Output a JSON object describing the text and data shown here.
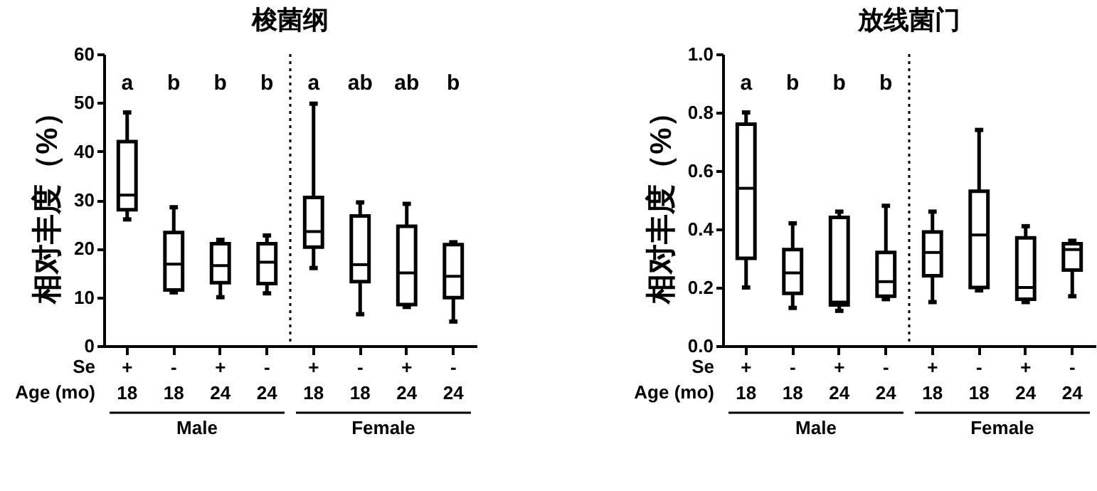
{
  "chart_data": [
    {
      "type": "box",
      "title": "梭菌纲",
      "ylabel": "相对丰度（%）",
      "categories": [
        "+ 18",
        "- 18",
        "+ 24",
        "- 24",
        "+ 18",
        "- 18",
        "+ 24",
        "- 24"
      ],
      "boxes": [
        {
          "low": 26,
          "q1": 28,
          "median": 31,
          "q3": 42,
          "high": 48
        },
        {
          "low": 11,
          "q1": 11.5,
          "median": 16.8,
          "q3": 23.3,
          "high": 28.5
        },
        {
          "low": 10,
          "q1": 13,
          "median": 16.5,
          "q3": 21,
          "high": 21.8
        },
        {
          "low": 10.8,
          "q1": 12.8,
          "median": 17.2,
          "q3": 21,
          "high": 22.7
        },
        {
          "low": 16,
          "q1": 20.3,
          "median": 23.5,
          "q3": 30.5,
          "high": 49.8
        },
        {
          "low": 6.5,
          "q1": 13.2,
          "median": 16.7,
          "q3": 26.7,
          "high": 29.5
        },
        {
          "low": 8,
          "q1": 8.5,
          "median": 15,
          "q3": 24.6,
          "high": 29.2
        },
        {
          "low": 5,
          "q1": 9.9,
          "median": 14.3,
          "q3": 20.8,
          "high": 21.3
        }
      ],
      "ylim": [
        0,
        60
      ],
      "yticks": [
        0,
        10,
        20,
        30,
        40,
        50,
        60
      ],
      "grid": false,
      "annotations": [
        "a",
        "b",
        "b",
        "b",
        "a",
        "ab",
        "ab",
        "b",
        "Se",
        "Age (mo)",
        "Male",
        "Female"
      ]
    },
    {
      "type": "box",
      "title": "放线菌门",
      "ylabel": "相对丰度（%）",
      "categories": [
        "+ 18",
        "- 18",
        "+ 24",
        "- 24",
        "+ 18",
        "- 18",
        "+ 24",
        "- 24"
      ],
      "boxes": [
        {
          "low": 0.2,
          "q1": 0.3,
          "median": 0.54,
          "q3": 0.76,
          "high": 0.8
        },
        {
          "low": 0.13,
          "q1": 0.18,
          "median": 0.25,
          "q3": 0.33,
          "high": 0.42
        },
        {
          "low": 0.12,
          "q1": 0.14,
          "median": 0.15,
          "q3": 0.44,
          "high": 0.46
        },
        {
          "low": 0.16,
          "q1": 0.17,
          "median": 0.22,
          "q3": 0.32,
          "high": 0.48
        },
        {
          "low": 0.15,
          "q1": 0.24,
          "median": 0.32,
          "q3": 0.39,
          "high": 0.46
        },
        {
          "low": 0.19,
          "q1": 0.2,
          "median": 0.38,
          "q3": 0.53,
          "high": 0.74
        },
        {
          "low": 0.15,
          "q1": 0.16,
          "median": 0.2,
          "q3": 0.37,
          "high": 0.41
        },
        {
          "low": 0.17,
          "q1": 0.26,
          "median": 0.33,
          "q3": 0.35,
          "high": 0.36
        }
      ],
      "ylim": [
        0,
        1
      ],
      "yticks": [
        {
          "value": 0,
          "label": "0.0"
        },
        {
          "value": 0.2,
          "label": "0.2"
        },
        {
          "value": 0.4,
          "label": "0.4"
        },
        {
          "value": 0.6,
          "label": "0.6"
        },
        {
          "value": 0.8,
          "label": "0.8"
        },
        {
          "value": 1,
          "label": "1.0"
        }
      ],
      "grid": false,
      "annotations": [
        "a",
        "b",
        "b",
        "b",
        "Se",
        "Age (mo)",
        "Male",
        "Female"
      ]
    }
  ]
}
